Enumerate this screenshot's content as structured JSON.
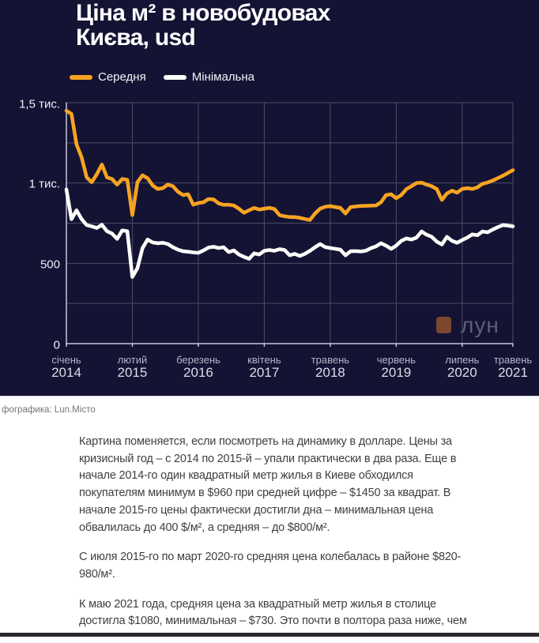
{
  "chart": {
    "title": "Ціна м² в новобудовах\nКиєва, usd",
    "legend": [
      {
        "label": "Середня",
        "color": "#F7A322"
      },
      {
        "label": "Мінімальна",
        "color": "#FBFBF8"
      }
    ],
    "brand": {
      "text": "лун",
      "square_color": "#7b472e"
    },
    "colors": {
      "background": "#141334",
      "grid": "#4c4c68",
      "axis": "#c6c6d8",
      "average_line": "#F7A322",
      "minimum_line": "#FBFBF8"
    }
  },
  "chart_data": {
    "type": "line",
    "title": "Ціна м² в новобудовах Києва, usd",
    "x": {
      "unit": "month",
      "start": "січень 2014",
      "end": "травень 2021",
      "months_total": 89,
      "ticks": [
        {
          "month_index": 0,
          "month": "січень",
          "year": "2014"
        },
        {
          "month_index": 13,
          "month": "лютий",
          "year": "2015"
        },
        {
          "month_index": 26,
          "month": "березень",
          "year": "2016"
        },
        {
          "month_index": 39,
          "month": "квітень",
          "year": "2017"
        },
        {
          "month_index": 52,
          "month": "травень",
          "year": "2018"
        },
        {
          "month_index": 65,
          "month": "червень",
          "year": "2019"
        },
        {
          "month_index": 78,
          "month": "липень",
          "year": "2020"
        },
        {
          "month_index": 88,
          "month": "травень",
          "year": "2021"
        }
      ]
    },
    "y": {
      "min": 0,
      "max": 1500,
      "grid_step": 250,
      "ticks": [
        {
          "value": 0,
          "label": "0"
        },
        {
          "value": 500,
          "label": "500"
        },
        {
          "value": 1000,
          "label": "1 тис."
        },
        {
          "value": 1500,
          "label": "1,5 тис."
        }
      ]
    },
    "grid": true,
    "legend_position": "top-left",
    "series": [
      {
        "name": "Середня",
        "color": "#F7A322",
        "values": [
          1450,
          1430,
          1240,
          1160,
          1035,
          1005,
          1055,
          1115,
          1035,
          1025,
          990,
          1025,
          1020,
          800,
          1005,
          1048,
          1030,
          985,
          963,
          968,
          990,
          980,
          945,
          925,
          930,
          865,
          875,
          880,
          900,
          898,
          873,
          864,
          865,
          860,
          840,
          815,
          830,
          845,
          835,
          840,
          845,
          838,
          800,
          793,
          788,
          788,
          783,
          776,
          770,
          810,
          840,
          852,
          856,
          850,
          845,
          810,
          850,
          854,
          857,
          858,
          859,
          860,
          880,
          925,
          930,
          905,
          925,
          962,
          980,
          1000,
          1002,
          990,
          980,
          962,
          895,
          935,
          952,
          940,
          963,
          968,
          963,
          973,
          995,
          1003,
          1015,
          1030,
          1045,
          1062,
          1080
        ]
      },
      {
        "name": "Мінімальна",
        "color": "#FBFBF8",
        "values": [
          960,
          775,
          830,
          775,
          738,
          730,
          720,
          740,
          700,
          685,
          652,
          705,
          700,
          415,
          470,
          595,
          648,
          630,
          625,
          628,
          620,
          600,
          585,
          575,
          572,
          568,
          565,
          580,
          598,
          603,
          595,
          600,
          570,
          580,
          555,
          540,
          528,
          562,
          555,
          578,
          583,
          578,
          588,
          583,
          550,
          559,
          546,
          559,
          578,
          600,
          620,
          601,
          595,
          590,
          585,
          550,
          575,
          576,
          574,
          578,
          594,
          605,
          625,
          610,
          590,
          610,
          640,
          655,
          648,
          660,
          698,
          678,
          665,
          635,
          617,
          665,
          640,
          628,
          645,
          660,
          680,
          675,
          698,
          693,
          710,
          725,
          738,
          735,
          730
        ]
      }
    ]
  },
  "caption": "фографика: Lun.Місто",
  "article": {
    "paragraphs": [
      [
        "Картина поменяется, если посмотреть на динамику в долларе. Цены за",
        "кризисный год – с 2014 по 2015-й – упали практически в два раза. Еще в",
        "начале 2014-го один квадратный метр жилья в Киеве обходился",
        "покупателям минимум в $960 при средней цифре – $1450 за квадрат. В",
        "начале 2015-го цены фактически достигли дна – минимальная цена",
        "обвалилась до 400 $/м², а средняя – до $800/м²."
      ],
      [
        "С июля 2015-го по март 2020-го средняя цена колебалась в районе $820-",
        "980/м²."
      ],
      [
        "К маю 2021 года, средняя цена за квадратный метр жилья в столице",
        "достигла $1080, минимальная – $730. Это почти в полтора раза ниже, чем"
      ]
    ]
  }
}
